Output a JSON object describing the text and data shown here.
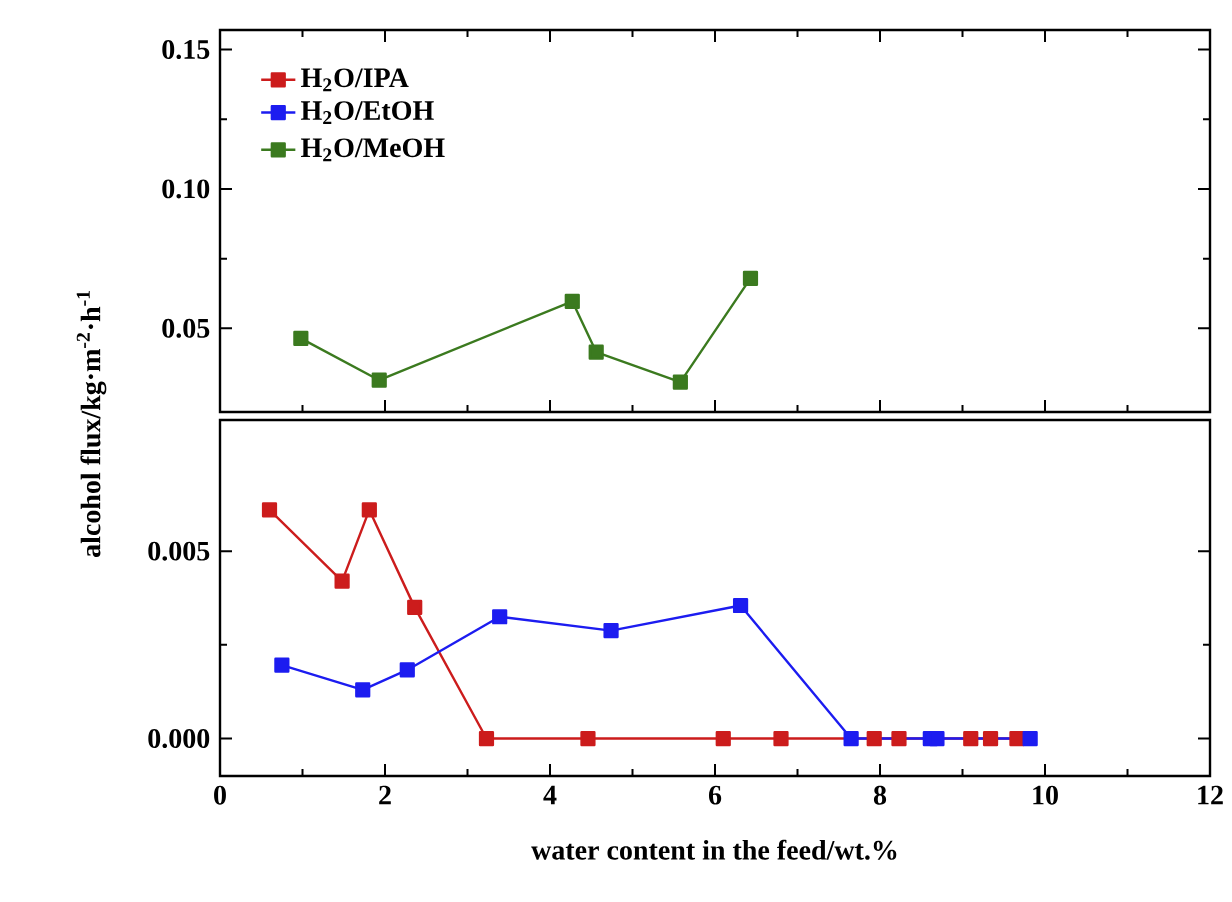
{
  "chart_data": [
    {
      "type": "line",
      "ylabel": "alcohol flux/kg·m$^{-2}$·h$^{-1}$",
      "xlim": [
        0,
        12
      ],
      "xticks": [
        0,
        2,
        4,
        6,
        8,
        10,
        12
      ],
      "ylim": [
        0.02,
        0.157
      ],
      "yticks": [
        {
          "value": 0.05,
          "label": "0.05"
        },
        {
          "value": 0.1,
          "label": "0.10"
        },
        {
          "value": 0.15,
          "label": "0.15"
        }
      ],
      "tick_labels": "y",
      "marker": "square",
      "line_style": "solid",
      "legend": "top left",
      "series": [
        {
          "name": "H$_{2}$O/MeOH",
          "color": "#3b7a1f",
          "x": [
            0.98,
            1.93,
            4.27,
            4.56,
            5.58,
            6.43
          ],
          "values": [
            0.0464,
            0.0314,
            0.0597,
            0.0415,
            0.0307,
            0.0679
          ]
        }
      ]
    },
    {
      "type": "line",
      "xlabel": "water content in the feed/wt.%",
      "xlim": [
        0,
        12
      ],
      "xticks": [
        0,
        2,
        4,
        6,
        8,
        10,
        12
      ],
      "ylim": [
        -0.001,
        0.0085
      ],
      "yticks": [
        {
          "value": 0,
          "label": "0.000"
        },
        {
          "value": 0.005,
          "label": "0.005"
        }
      ],
      "marker": "square",
      "line_style": "solid",
      "legend": "top left",
      "series": [
        {
          "name": "H$_{2}$O/IPA",
          "color": "#cc1c1c",
          "x": [
            0.6,
            1.48,
            1.81,
            2.36,
            3.23,
            4.46,
            6.1,
            6.8,
            7.93,
            8.23,
            9.1,
            9.34,
            9.66
          ],
          "values": [
            0.0061,
            0.0042,
            0.0061,
            0.0035,
            0,
            0,
            0,
            0,
            0,
            0,
            0,
            0,
            0
          ]
        },
        {
          "name": "H$_{2}$O/EtOH",
          "color": "#1c1cf0",
          "x": [
            0.75,
            1.73,
            2.27,
            3.39,
            4.74,
            6.31,
            7.65,
            8.61,
            8.69,
            9.82
          ],
          "values": [
            0.00196,
            0.0013,
            0.00183,
            0.00325,
            0.00288,
            0.00355,
            0,
            0,
            0,
            0
          ]
        }
      ]
    }
  ]
}
